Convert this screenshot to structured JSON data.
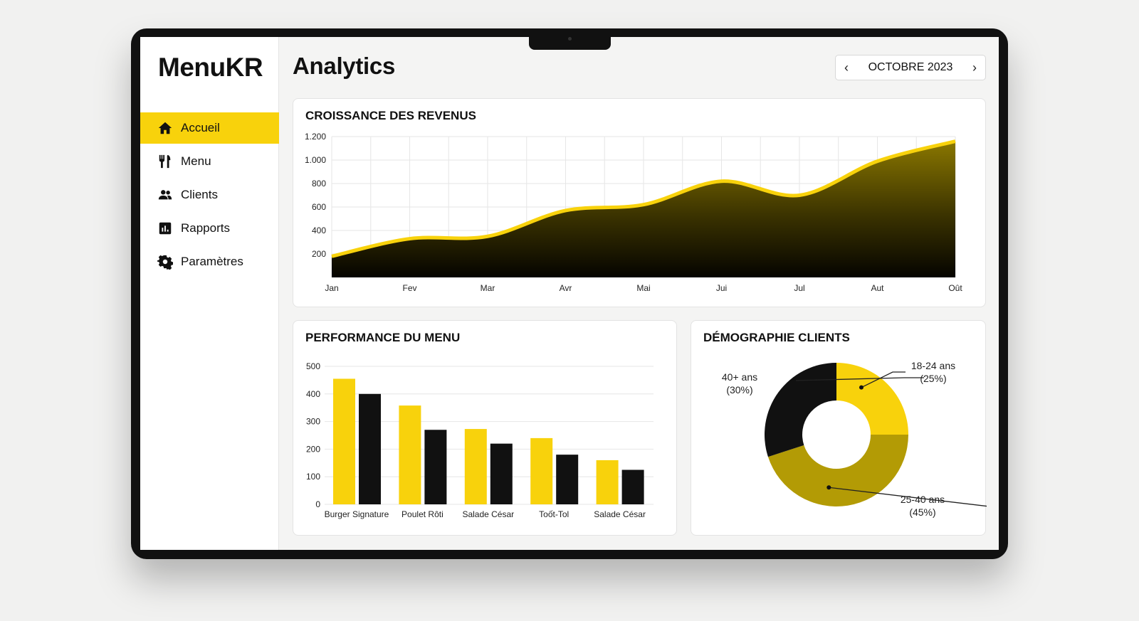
{
  "sidebar": {
    "logo": "MenuKR",
    "items": [
      {
        "label": "Accueil",
        "icon": "home-icon",
        "active": true
      },
      {
        "label": "Menu",
        "icon": "utensils-icon"
      },
      {
        "label": "Clients",
        "icon": "users-icon"
      },
      {
        "label": "Rapports",
        "icon": "bar-chart-icon"
      },
      {
        "label": "Paramètres",
        "icon": "gear-icon"
      }
    ]
  },
  "header": {
    "title": "Analytics",
    "date": "OCTOBRE 2023",
    "prev": "‹",
    "next": "›"
  },
  "colors": {
    "accent": "#f8d20c",
    "dark": "#111111",
    "olive": "#b39b05"
  },
  "chart_data": [
    {
      "type": "area",
      "title": "CROISSANCE DES REVENUS",
      "categories": [
        "Jan",
        "Fev",
        "Mar",
        "Avr",
        "Mai",
        "Jui",
        "Jul",
        "Aut",
        "Oût"
      ],
      "values": [
        180,
        330,
        350,
        570,
        620,
        820,
        700,
        990,
        1160
      ],
      "ylim": [
        0,
        1200
      ],
      "yticks": [
        "200",
        "400",
        "600",
        "800",
        "1.000",
        "1.200"
      ],
      "ytick_values": [
        200,
        400,
        600,
        800,
        1000,
        1200
      ],
      "grid": true
    },
    {
      "type": "bar",
      "title": "PERFORMANCE DU MENU",
      "categories": [
        "Burger Signature",
        "Poulet Rôti",
        "Salade César",
        "Toốt-Tol",
        "Salade César"
      ],
      "series": [
        {
          "values": [
            455,
            358,
            273,
            240,
            160
          ],
          "color": "#f8d20c"
        },
        {
          "values": [
            400,
            270,
            220,
            180,
            125
          ],
          "color": "#111111"
        }
      ],
      "ylim": [
        0,
        500
      ],
      "yticks": [
        0,
        100,
        200,
        300,
        400,
        500
      ],
      "grid": true
    },
    {
      "type": "pie",
      "title": "DÉMOGRAPHIE CLIENTS",
      "donut": true,
      "slices": [
        {
          "label": "18-24 ans",
          "pct": "(25%)",
          "value": 25,
          "color": "#f8d20c"
        },
        {
          "label": "25-40 ans",
          "pct": "(45%)",
          "value": 45,
          "color": "#b39b05"
        },
        {
          "label": "40+ ans",
          "pct": "(30%)",
          "value": 30,
          "color": "#111111"
        }
      ]
    }
  ]
}
